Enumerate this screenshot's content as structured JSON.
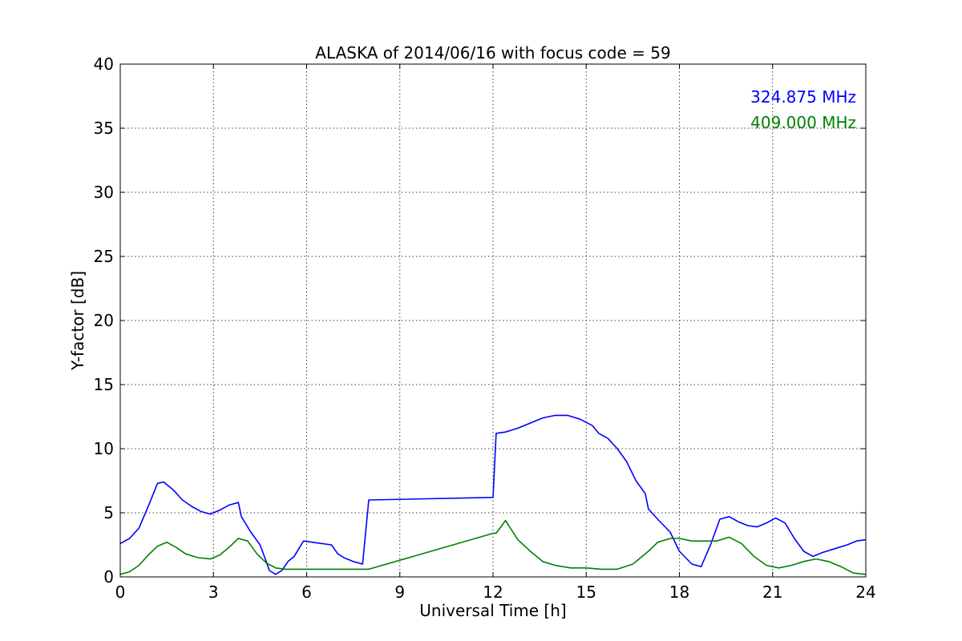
{
  "chart_data": {
    "type": "line",
    "title": "ALASKA of 2014/06/16 with focus code = 59",
    "xlabel": "Universal Time [h]",
    "ylabel": "Y-factor [dB]",
    "xlim": [
      0,
      24
    ],
    "ylim": [
      0,
      40
    ],
    "xticks": [
      "0",
      "3",
      "6",
      "9",
      "12",
      "15",
      "18",
      "21",
      "24"
    ],
    "yticks": [
      "0",
      "5",
      "10",
      "15",
      "20",
      "25",
      "30",
      "35",
      "40"
    ],
    "grid": true,
    "legend_position": "top-right",
    "series": [
      {
        "name": "324.875 MHz",
        "color": "#0000ff",
        "x": [
          0,
          0.3,
          0.6,
          0.9,
          1.2,
          1.4,
          1.7,
          2.0,
          2.3,
          2.6,
          2.9,
          3.2,
          3.5,
          3.8,
          3.9,
          4.2,
          4.5,
          4.7,
          4.8,
          5.0,
          5.2,
          5.4,
          5.6,
          5.9,
          6.2,
          6.5,
          6.8,
          7.0,
          7.2,
          7.5,
          7.8,
          8.0,
          12.0,
          12.1,
          12.4,
          12.8,
          13.2,
          13.6,
          14.0,
          14.4,
          14.8,
          15.2,
          15.4,
          15.7,
          16.0,
          16.3,
          16.6,
          16.9,
          17.0,
          17.3,
          17.7,
          18.0,
          18.4,
          18.7,
          19.0,
          19.3,
          19.6,
          19.9,
          20.2,
          20.5,
          20.8,
          21.1,
          21.4,
          21.7,
          22.0,
          22.3,
          22.6,
          23.0,
          23.4,
          23.7,
          24.0
        ],
        "y": [
          2.6,
          3.0,
          3.8,
          5.5,
          7.3,
          7.4,
          6.8,
          6.0,
          5.5,
          5.1,
          4.9,
          5.2,
          5.6,
          5.8,
          4.7,
          3.5,
          2.5,
          1.2,
          0.5,
          0.2,
          0.5,
          1.2,
          1.6,
          2.8,
          2.7,
          2.6,
          2.5,
          1.8,
          1.5,
          1.2,
          1.0,
          6.0,
          6.2,
          11.2,
          11.3,
          11.6,
          12.0,
          12.4,
          12.6,
          12.6,
          12.3,
          11.8,
          11.2,
          10.8,
          10.0,
          9.0,
          7.5,
          6.5,
          5.3,
          4.5,
          3.5,
          2.0,
          1.0,
          0.8,
          2.5,
          4.5,
          4.7,
          4.3,
          4.0,
          3.9,
          4.2,
          4.6,
          4.2,
          3.0,
          2.0,
          1.6,
          1.9,
          2.2,
          2.5,
          2.8,
          2.9
        ]
      },
      {
        "name": "409.000 MHz",
        "color": "#008000",
        "x": [
          0,
          0.3,
          0.6,
          0.9,
          1.2,
          1.5,
          1.8,
          2.1,
          2.5,
          2.9,
          3.2,
          3.5,
          3.8,
          4.1,
          4.4,
          4.7,
          5.0,
          5.3,
          5.6,
          6.0,
          6.5,
          7.0,
          7.5,
          8.0,
          12.0,
          12.1,
          12.4,
          12.8,
          13.2,
          13.6,
          14.0,
          14.5,
          15.0,
          15.5,
          16.0,
          16.5,
          17.0,
          17.3,
          17.7,
          18.0,
          18.4,
          18.8,
          19.2,
          19.6,
          20.0,
          20.4,
          20.8,
          21.2,
          21.6,
          22.0,
          22.4,
          22.8,
          23.2,
          23.6,
          24.0
        ],
        "y": [
          0.2,
          0.4,
          0.9,
          1.7,
          2.4,
          2.7,
          2.3,
          1.8,
          1.5,
          1.4,
          1.7,
          2.3,
          3.0,
          2.8,
          1.8,
          1.1,
          0.7,
          0.6,
          0.6,
          0.6,
          0.6,
          0.6,
          0.6,
          0.6,
          3.4,
          3.4,
          4.4,
          2.9,
          2.0,
          1.2,
          0.9,
          0.7,
          0.7,
          0.6,
          0.6,
          1.0,
          2.0,
          2.7,
          3.0,
          3.0,
          2.8,
          2.8,
          2.8,
          3.1,
          2.6,
          1.6,
          0.9,
          0.7,
          0.9,
          1.2,
          1.4,
          1.2,
          0.8,
          0.3,
          0.2
        ]
      }
    ]
  }
}
